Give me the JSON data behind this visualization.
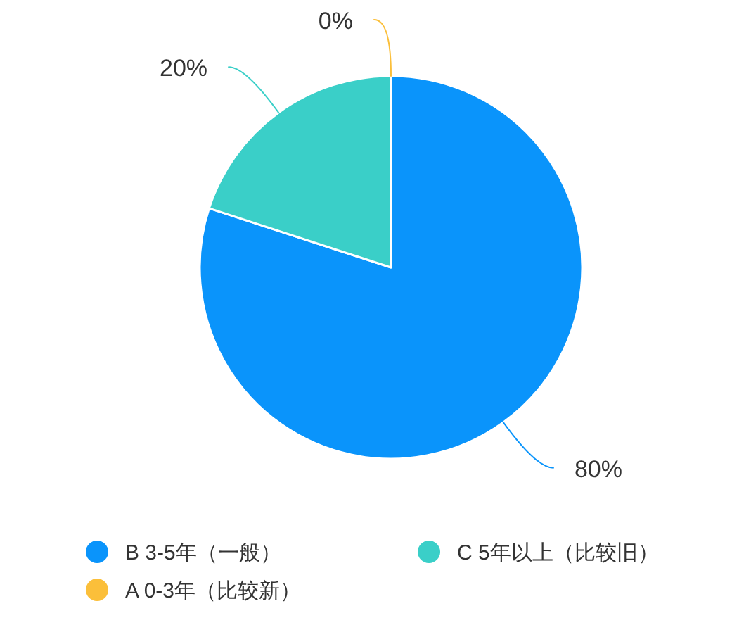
{
  "chart_data": {
    "type": "pie",
    "categories": [
      "B 3-5年（一般）",
      "C 5年以上（比较旧）",
      "A 0-3年（比较新）"
    ],
    "values": [
      80,
      20,
      0
    ],
    "colors": [
      "#0a94fb",
      "#3acfc8",
      "#fbbf3a"
    ],
    "value_labels": [
      "80%",
      "20%",
      "0%"
    ],
    "legend": "bottom"
  }
}
